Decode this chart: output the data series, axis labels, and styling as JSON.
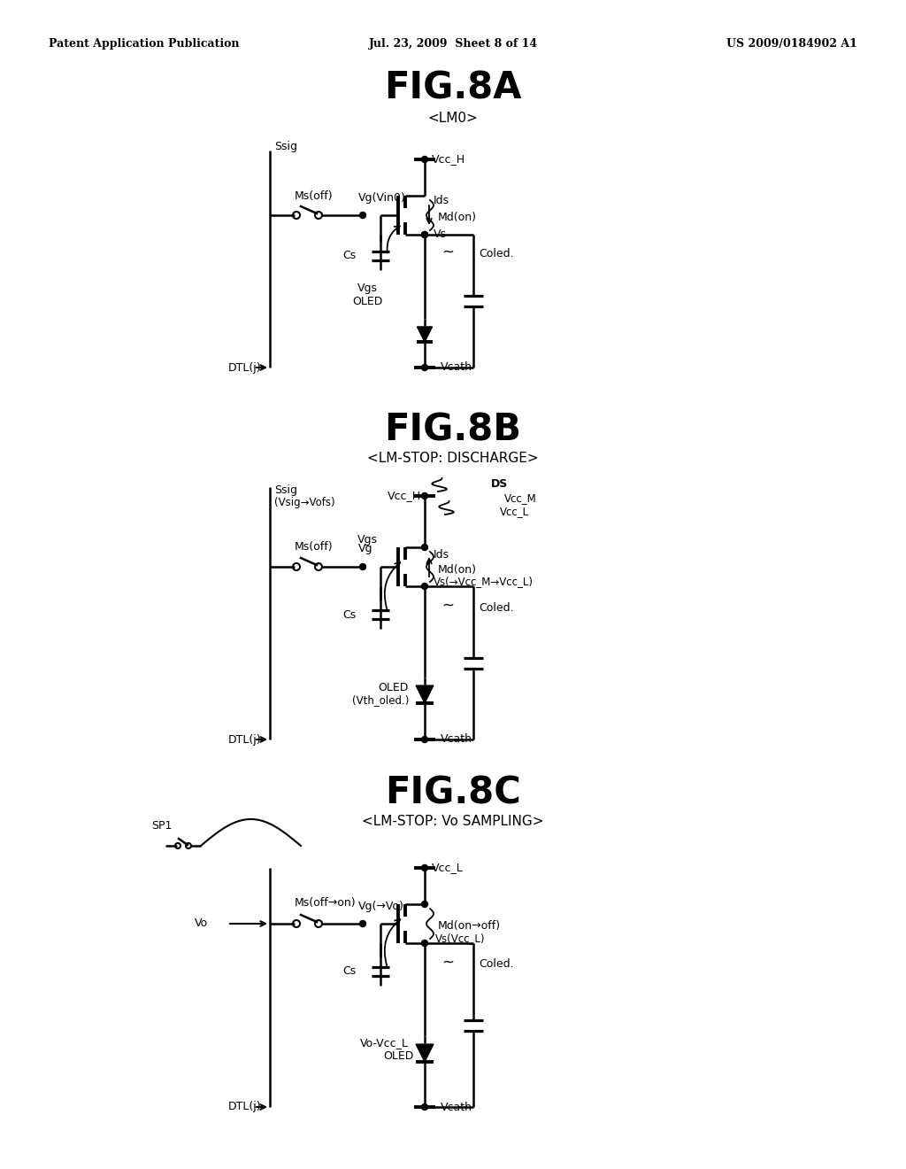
{
  "header_left": "Patent Application Publication",
  "header_mid": "Jul. 23, 2009  Sheet 8 of 14",
  "header_right": "US 2009/0184902 A1",
  "fig8a_title": "FIG.8A",
  "fig8a_sub": "<LM0>",
  "fig8b_title": "FIG.8B",
  "fig8b_sub": "<LM-STOP: DISCHARGE>",
  "fig8c_title": "FIG.8C",
  "fig8c_sub": "<LM-STOP: Vo SAMPLING>",
  "bg_color": "#ffffff",
  "line_color": "#000000"
}
